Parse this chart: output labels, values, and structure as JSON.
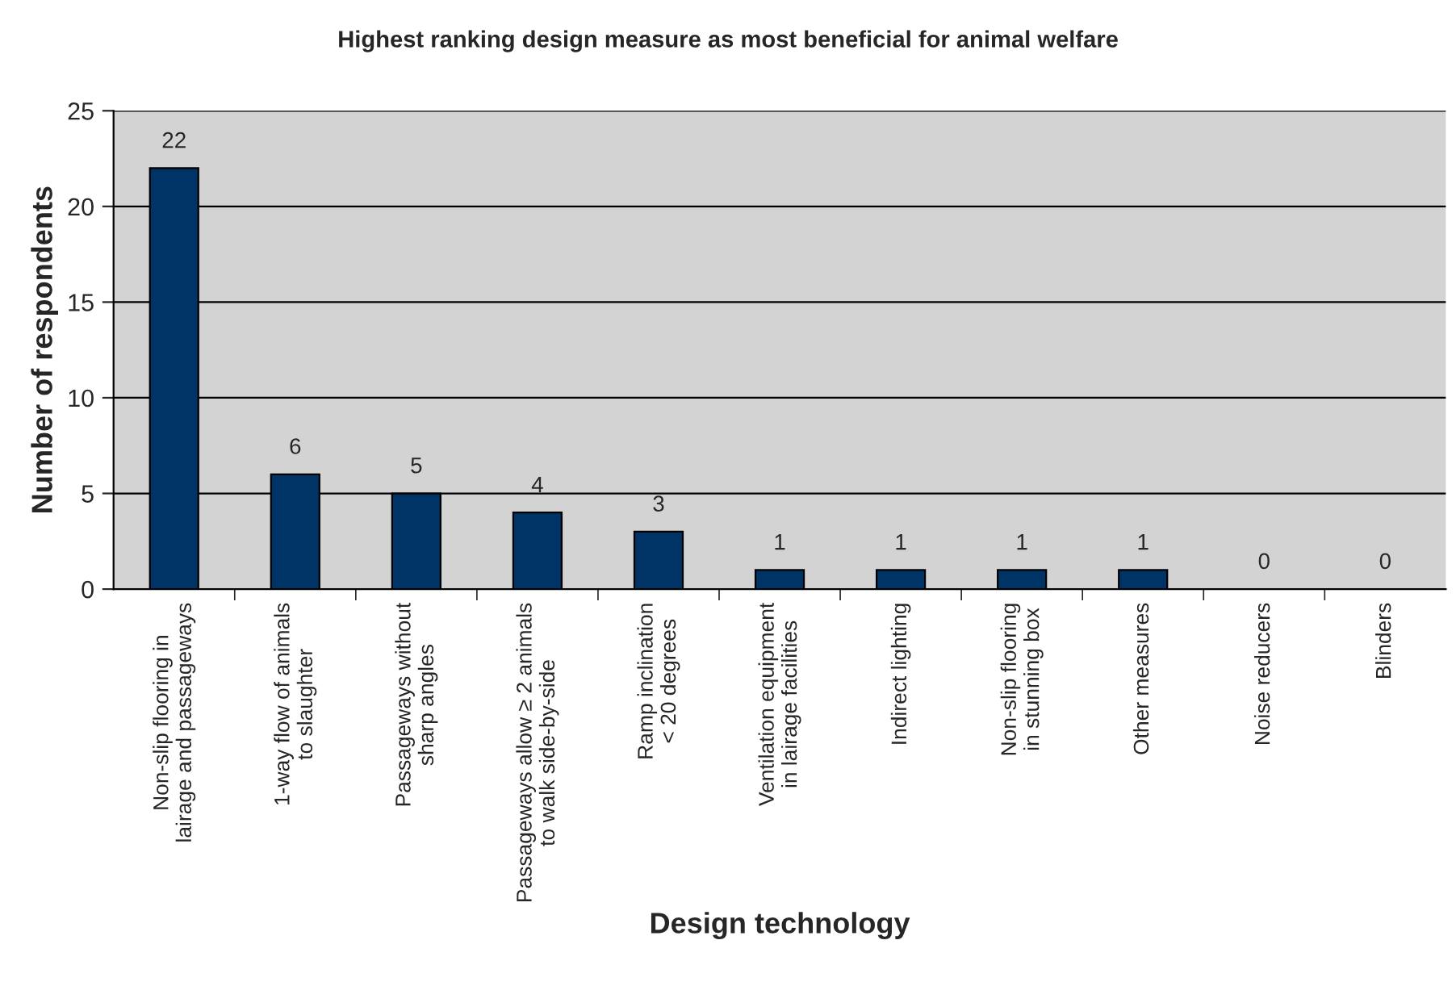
{
  "chart_data": {
    "type": "bar",
    "title": "Highest ranking design measure as most beneficial for animal welfare",
    "xlabel": "Design technology",
    "ylabel": "Number of respondents",
    "categories": [
      "Non-slip flooring in\nlairage and passageways",
      "1-way flow of animals\nto slaughter",
      "Passageways without\nsharp angles",
      "Passageways allow ≥ 2 animals\nto walk side-by-side",
      "Ramp inclination\n< 20 degrees",
      "Ventilation equipment\nin lairage facilities",
      "Indirect lighting",
      "Non-slip flooring\nin stunning box",
      "Other measures",
      "Noise reducers",
      "Blinders"
    ],
    "values": [
      22,
      6,
      5,
      4,
      3,
      1,
      1,
      1,
      1,
      0,
      0
    ],
    "color": "#003366",
    "ylim": [
      0,
      25
    ],
    "yticks": [
      0,
      5,
      10,
      15,
      20,
      25
    ],
    "grid": "y",
    "data_labels": true
  }
}
